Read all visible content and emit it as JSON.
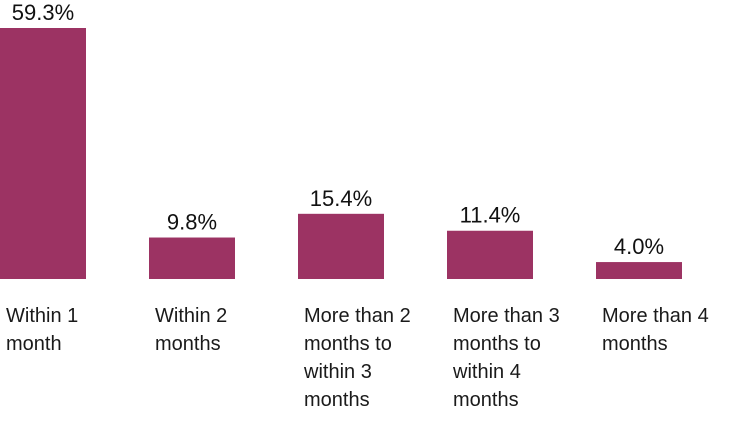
{
  "chart_data": {
    "type": "bar",
    "categories": [
      "Within 1\nmonth",
      "Within 2\nmonths",
      "More than 2\nmonths to\nwithin 3\nmonths",
      "More than 3\nmonths to\nwithin 4\nmonths",
      "More than 4\nmonths"
    ],
    "values": [
      59.3,
      9.8,
      15.4,
      11.4,
      4.0
    ],
    "data_labels": [
      "59.3%",
      "9.8%",
      "15.4%",
      "11.4%",
      "4.0%"
    ],
    "bar_color": "#9c3363",
    "title": "",
    "xlabel": "",
    "ylabel": "",
    "grid": false,
    "legend": "none"
  }
}
